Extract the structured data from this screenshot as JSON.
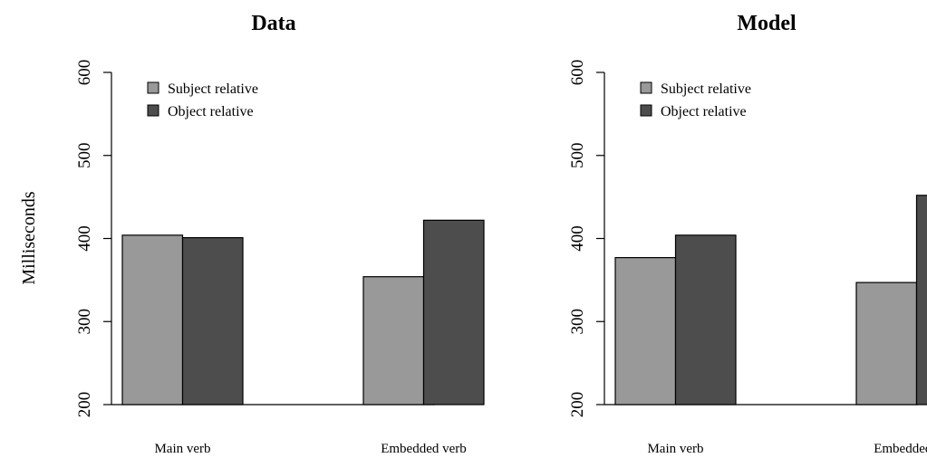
{
  "chart_data": [
    {
      "type": "bar",
      "title": "Data",
      "ylabel": "Milliseconds",
      "categories": [
        "Main verb",
        "Embedded verb"
      ],
      "series": [
        {
          "name": "Subject relative",
          "color": "#999999",
          "values": [
            404,
            354
          ]
        },
        {
          "name": "Object relative",
          "color": "#4d4d4d",
          "values": [
            401,
            422
          ]
        }
      ],
      "ylim": [
        200,
        600
      ],
      "yticks": [
        200,
        300,
        400,
        500,
        600
      ],
      "grid": false,
      "legend": "top-left"
    },
    {
      "type": "bar",
      "title": "Model",
      "ylabel": "",
      "categories": [
        "Main verb",
        "Embedded verb"
      ],
      "series": [
        {
          "name": "Subject relative",
          "color": "#999999",
          "values": [
            377,
            347
          ]
        },
        {
          "name": "Object relative",
          "color": "#4d4d4d",
          "values": [
            404,
            452
          ]
        }
      ],
      "ylim": [
        200,
        600
      ],
      "yticks": [
        200,
        300,
        400,
        500,
        600
      ],
      "grid": false,
      "legend": "top-left"
    }
  ]
}
